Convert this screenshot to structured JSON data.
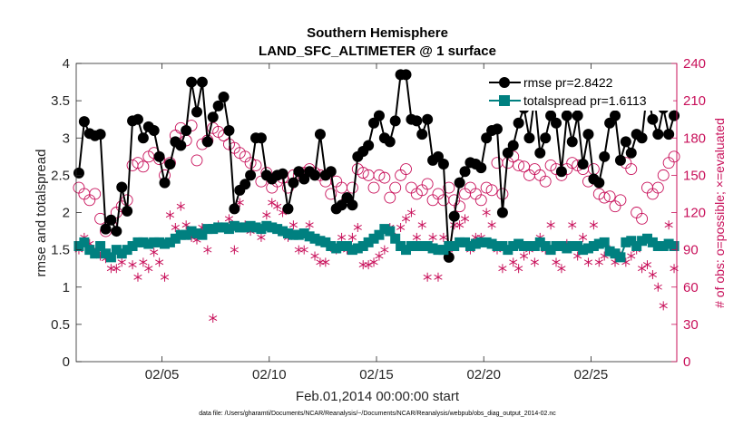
{
  "chart_data": {
    "type": "line",
    "title_line1": "Southern Hemisphere",
    "title_line2": "LAND_SFC_ALTIMETER @ 1 surface",
    "xlabel": "Feb.01,2014 00:00:00 start",
    "ylabel": "rmse and totalspread",
    "y2label": "# of obs: o=possible; ×=evaluated",
    "footer": "data file: /Users/gharamti/Documents/NCAR/Reanalysis/~/Documents/NCAR/Reanalysis/webpub/obs_diag_output_2014-02.nc",
    "xlim": [
      1,
      29
    ],
    "ylim": [
      0,
      4
    ],
    "y2lim": [
      0,
      240
    ],
    "xticks": [
      5,
      10,
      15,
      20,
      25
    ],
    "xtick_labels": [
      "02/05",
      "02/10",
      "02/15",
      "02/20",
      "02/25"
    ],
    "yticks": [
      0,
      0.5,
      1,
      1.5,
      2,
      2.5,
      3,
      3.5,
      4
    ],
    "ytick_labels": [
      "0",
      "0.5",
      "1",
      "1.5",
      "2",
      "2.5",
      "3",
      "3.5",
      "4"
    ],
    "y2ticks": [
      0,
      30,
      60,
      90,
      120,
      150,
      180,
      210,
      240
    ],
    "y2tick_labels": [
      "0",
      "30",
      "60",
      "90",
      "120",
      "150",
      "180",
      "210",
      "240"
    ],
    "legend": [
      "rmse pr=2.8422",
      "totalspread pr=1.6113"
    ],
    "colors": {
      "rmse": "#000000",
      "spread": "#008080",
      "obs": "#c8105a",
      "axis": "#262626"
    },
    "x": [
      1.125,
      1.375,
      1.625,
      1.875,
      2.125,
      2.375,
      2.625,
      2.875,
      3.125,
      3.375,
      3.625,
      3.875,
      4.125,
      4.375,
      4.625,
      4.875,
      5.125,
      5.375,
      5.625,
      5.875,
      6.125,
      6.375,
      6.625,
      6.875,
      7.125,
      7.375,
      7.625,
      7.875,
      8.125,
      8.375,
      8.625,
      8.875,
      9.125,
      9.375,
      9.625,
      9.875,
      10.125,
      10.375,
      10.625,
      10.875,
      11.125,
      11.375,
      11.625,
      11.875,
      12.125,
      12.375,
      12.625,
      12.875,
      13.125,
      13.375,
      13.625,
      13.875,
      14.125,
      14.375,
      14.625,
      14.875,
      15.125,
      15.375,
      15.625,
      15.875,
      16.125,
      16.375,
      16.625,
      16.875,
      17.125,
      17.375,
      17.625,
      17.875,
      18.125,
      18.375,
      18.625,
      18.875,
      19.125,
      19.375,
      19.625,
      19.875,
      20.125,
      20.375,
      20.625,
      20.875,
      21.125,
      21.375,
      21.625,
      21.875,
      22.125,
      22.375,
      22.625,
      22.875,
      23.125,
      23.375,
      23.625,
      23.875,
      24.125,
      24.375,
      24.625,
      24.875,
      25.125,
      25.375,
      25.625,
      25.875,
      26.125,
      26.375,
      26.625,
      26.875,
      27.125,
      27.375,
      27.625,
      27.875,
      28.125,
      28.375,
      28.625,
      28.875
    ],
    "series": [
      {
        "name": "rmse",
        "marker": "filled-circle",
        "values": [
          2.53,
          3.22,
          3.06,
          3.03,
          3.05,
          1.78,
          1.9,
          1.75,
          2.34,
          2.02,
          3.23,
          3.25,
          3.0,
          3.15,
          3.1,
          2.75,
          2.4,
          2.65,
          2.95,
          2.9,
          3.1,
          3.75,
          3.35,
          3.75,
          2.95,
          3.28,
          3.43,
          3.55,
          3.1,
          2.05,
          2.3,
          2.38,
          2.5,
          3.0,
          3.0,
          2.5,
          2.45,
          2.5,
          2.52,
          2.05,
          2.4,
          2.55,
          2.45,
          2.55,
          2.5,
          3.05,
          2.5,
          2.55,
          2.05,
          2.1,
          2.2,
          2.1,
          2.75,
          2.82,
          2.9,
          3.2,
          3.3,
          3.0,
          2.95,
          3.23,
          3.85,
          3.85,
          3.25,
          3.23,
          3.05,
          3.25,
          2.7,
          2.75,
          2.65,
          1.4,
          1.95,
          2.4,
          2.55,
          2.67,
          2.65,
          2.6,
          3.0,
          3.1,
          3.12,
          2.0,
          2.8,
          2.9,
          3.2,
          3.4,
          3.0,
          3.55,
          2.8,
          3.0,
          3.3,
          3.2,
          2.55,
          3.3,
          2.95,
          3.3,
          2.65,
          3.05,
          2.45,
          2.4,
          2.75,
          3.2,
          3.3,
          2.7,
          2.95,
          2.8,
          3.05,
          3.0,
          3.65,
          3.25,
          3.05,
          3.4,
          3.05,
          3.3
        ]
      },
      {
        "name": "totalspread",
        "marker": "filled-square",
        "values": [
          1.55,
          1.6,
          1.5,
          1.45,
          1.55,
          1.45,
          1.4,
          1.5,
          1.45,
          1.5,
          1.55,
          1.6,
          1.6,
          1.58,
          1.6,
          1.6,
          1.58,
          1.6,
          1.65,
          1.7,
          1.7,
          1.75,
          1.72,
          1.7,
          1.78,
          1.78,
          1.8,
          1.8,
          1.78,
          1.82,
          1.8,
          1.8,
          1.82,
          1.8,
          1.78,
          1.82,
          1.8,
          1.78,
          1.75,
          1.72,
          1.7,
          1.7,
          1.72,
          1.68,
          1.65,
          1.62,
          1.6,
          1.55,
          1.52,
          1.55,
          1.55,
          1.5,
          1.52,
          1.55,
          1.6,
          1.65,
          1.7,
          1.78,
          1.75,
          1.65,
          1.55,
          1.5,
          1.55,
          1.55,
          1.55,
          1.55,
          1.52,
          1.5,
          1.5,
          1.55,
          1.55,
          1.6,
          1.6,
          1.55,
          1.58,
          1.6,
          1.6,
          1.58,
          1.55,
          1.55,
          1.5,
          1.55,
          1.58,
          1.55,
          1.55,
          1.55,
          1.6,
          1.55,
          1.5,
          1.55,
          1.55,
          1.52,
          1.55,
          1.55,
          1.5,
          1.52,
          1.55,
          1.58,
          1.6,
          1.48,
          1.45,
          1.4,
          1.6,
          1.62,
          1.55,
          1.62,
          1.65,
          1.6,
          1.55,
          1.55,
          1.58,
          1.55
        ]
      },
      {
        "name": "obs_possible",
        "axis": "right",
        "marker": "open-circle",
        "values": [
          140,
          135,
          130,
          135,
          115,
          105,
          110,
          120,
          125,
          130,
          158,
          160,
          157,
          165,
          168,
          163,
          150,
          160,
          182,
          188,
          178,
          190,
          162,
          175,
          178,
          188,
          185,
          182,
          175,
          172,
          168,
          165,
          160,
          158,
          145,
          152,
          140,
          145,
          148,
          140,
          150,
          150,
          152,
          155,
          152,
          150,
          145,
          135,
          145,
          140,
          130,
          140,
          155,
          152,
          150,
          140,
          150,
          148,
          132,
          140,
          150,
          155,
          140,
          135,
          138,
          143,
          130,
          135,
          130,
          140,
          130,
          125,
          135,
          140,
          135,
          130,
          140,
          138,
          160,
          135,
          160,
          165,
          158,
          157,
          150,
          155,
          150,
          145,
          158,
          155,
          150,
          155,
          160,
          158,
          155,
          145,
          155,
          135,
          132,
          133,
          125,
          130,
          160,
          155,
          120,
          115,
          140,
          135,
          140,
          150,
          160,
          165
        ]
      },
      {
        "name": "obs_evaluated",
        "axis": "right",
        "marker": "asterisk",
        "values": [
          90,
          100,
          95,
          88,
          85,
          83,
          75,
          75,
          80,
          90,
          78,
          68,
          80,
          75,
          88,
          80,
          68,
          118,
          108,
          125,
          110,
          100,
          98,
          108,
          90,
          35,
          110,
          108,
          115,
          90,
          128,
          110,
          105,
          108,
          100,
          118,
          128,
          125,
          120,
          100,
          110,
          90,
          90,
          110,
          85,
          80,
          80,
          92,
          90,
          100,
          90,
          100,
          108,
          78,
          78,
          80,
          85,
          90,
          108,
          100,
          108,
          115,
          120,
          100,
          110,
          68,
          100,
          68,
          100,
          90,
          110,
          110,
          115,
          90,
          100,
          100,
          120,
          110,
          90,
          75,
          90,
          80,
          75,
          85,
          90,
          80,
          100,
          90,
          110,
          80,
          75,
          95,
          110,
          85,
          100,
          80,
          110,
          80,
          85,
          90,
          80,
          85,
          80,
          85,
          90,
          75,
          78,
          70,
          60,
          45,
          110,
          75
        ]
      }
    ]
  }
}
